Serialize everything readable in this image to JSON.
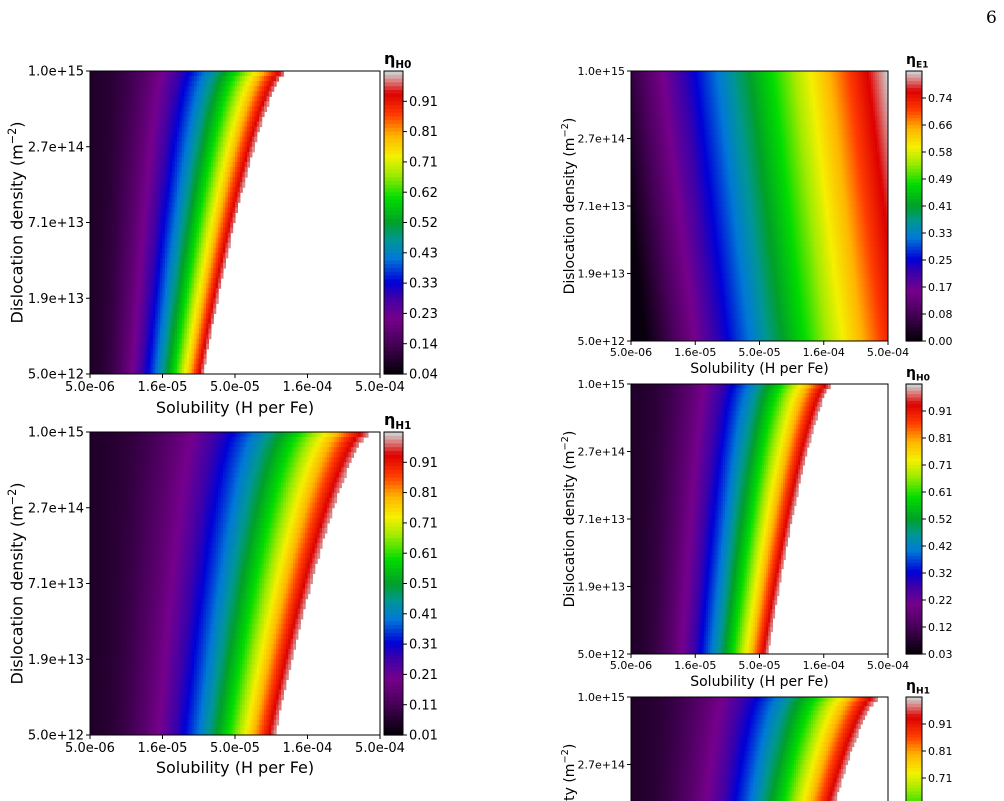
{
  "page_number": "6",
  "chart_data": [
    {
      "type": "heatmap",
      "xlabel": "Solubility (H per Fe)",
      "ylabel": "Dislocation density (m",
      "ylabel_sup": "−2",
      "ylabel_close": ")",
      "x_ticks": [
        "5.0e-06",
        "1.6e-05",
        "5.0e-05",
        "1.6e-04",
        "5.0e-04"
      ],
      "y_ticks": [
        "1.0e+15",
        "2.7e+14",
        "7.1e+13",
        "1.9e+13",
        "5.0e+12"
      ],
      "xlim": [
        5e-06,
        0.0005
      ],
      "ylim": [
        5000000000000.0,
        1000000000000000.0
      ],
      "x_scale": "log",
      "y_scale": "log",
      "colorbar_label": "η",
      "colorbar_sub": "H0",
      "colorbar_ticks": [
        "0.91",
        "0.81",
        "0.71",
        "0.62",
        "0.52",
        "0.43",
        "0.33",
        "0.23",
        "0.14",
        "0.04"
      ],
      "colorbar_range": [
        0.04,
        1.0
      ],
      "boundary_solubility": [
        3e-05,
        0.00011
      ],
      "band_pattern": "fan"
    },
    {
      "type": "heatmap",
      "xlabel": "Solubility (H per Fe)",
      "ylabel": "Dislocation density (m",
      "ylabel_sup": "−2",
      "ylabel_close": ")",
      "x_ticks": [
        "5.0e-06",
        "1.6e-05",
        "5.0e-05",
        "1.6e-04",
        "5.0e-04"
      ],
      "y_ticks": [
        "1.0e+15",
        "2.7e+14",
        "7.1e+13",
        "1.9e+13",
        "5.0e+12"
      ],
      "xlim": [
        5e-06,
        0.0005
      ],
      "ylim": [
        5000000000000.0,
        1000000000000000.0
      ],
      "x_scale": "log",
      "y_scale": "log",
      "colorbar_label": "η",
      "colorbar_sub": "E1",
      "colorbar_ticks": [
        "0.74",
        "0.66",
        "0.58",
        "0.49",
        "0.41",
        "0.33",
        "0.25",
        "0.17",
        "0.08",
        "0.00"
      ],
      "colorbar_range": [
        0.0,
        0.82
      ],
      "boundary_solubility": [
        0.0005,
        0.0005
      ],
      "band_pattern": "rings"
    },
    {
      "type": "heatmap",
      "xlabel": "Solubility (H per Fe)",
      "ylabel": "Dislocation density (m",
      "ylabel_sup": "−2",
      "ylabel_close": ")",
      "x_ticks": [
        "5.0e-06",
        "1.6e-05",
        "5.0e-05",
        "1.6e-04",
        "5.0e-04"
      ],
      "y_ticks": [
        "1.0e+15",
        "2.7e+14",
        "7.1e+13",
        "1.9e+13",
        "5.0e+12"
      ],
      "xlim": [
        5e-06,
        0.0005
      ],
      "ylim": [
        5000000000000.0,
        1000000000000000.0
      ],
      "x_scale": "log",
      "y_scale": "log",
      "colorbar_label": "η",
      "colorbar_sub": "H0",
      "colorbar_ticks": [
        "0.91",
        "0.81",
        "0.71",
        "0.61",
        "0.52",
        "0.42",
        "0.32",
        "0.22",
        "0.12",
        "0.03"
      ],
      "colorbar_range": [
        0.03,
        1.0
      ],
      "boundary_solubility": [
        5.8e-05,
        0.00018
      ],
      "band_pattern": "fan"
    },
    {
      "type": "heatmap",
      "xlabel": "Solubility (H per Fe)",
      "ylabel": "Dislocation density (m",
      "ylabel_sup": "−2",
      "ylabel_close": ")",
      "x_ticks": [
        "5.0e-06",
        "1.6e-05",
        "5.0e-05",
        "1.6e-04",
        "5.0e-04"
      ],
      "y_ticks": [
        "1.0e+15",
        "2.7e+14",
        "7.1e+13",
        "1.9e+13",
        "5.0e+12"
      ],
      "xlim": [
        5e-06,
        0.0005
      ],
      "ylim": [
        5000000000000.0,
        1000000000000000.0
      ],
      "x_scale": "log",
      "y_scale": "log",
      "colorbar_label": "η",
      "colorbar_sub": "H1",
      "colorbar_ticks": [
        "0.91",
        "0.81",
        "0.71",
        "0.61",
        "0.51",
        "0.41",
        "0.31",
        "0.21",
        "0.11",
        "0.01"
      ],
      "colorbar_range": [
        0.01,
        1.0
      ],
      "boundary_solubility": [
        9.5e-05,
        0.00042
      ],
      "band_pattern": "fan"
    },
    {
      "type": "heatmap",
      "ylabel": "Dislocation density (m",
      "ylabel_sup": "−2",
      "ylabel_close": ")",
      "y_ticks": [
        "1.0e+15",
        "2.7e+14"
      ],
      "colorbar_label": "η",
      "colorbar_sub": "H1",
      "colorbar_ticks": [
        "0.91",
        "0.81",
        "0.71"
      ],
      "colorbar_range": [
        0.01,
        1.0
      ],
      "boundary_solubility": [
        9.5e-05,
        0.00042
      ],
      "band_pattern": "fan"
    }
  ]
}
